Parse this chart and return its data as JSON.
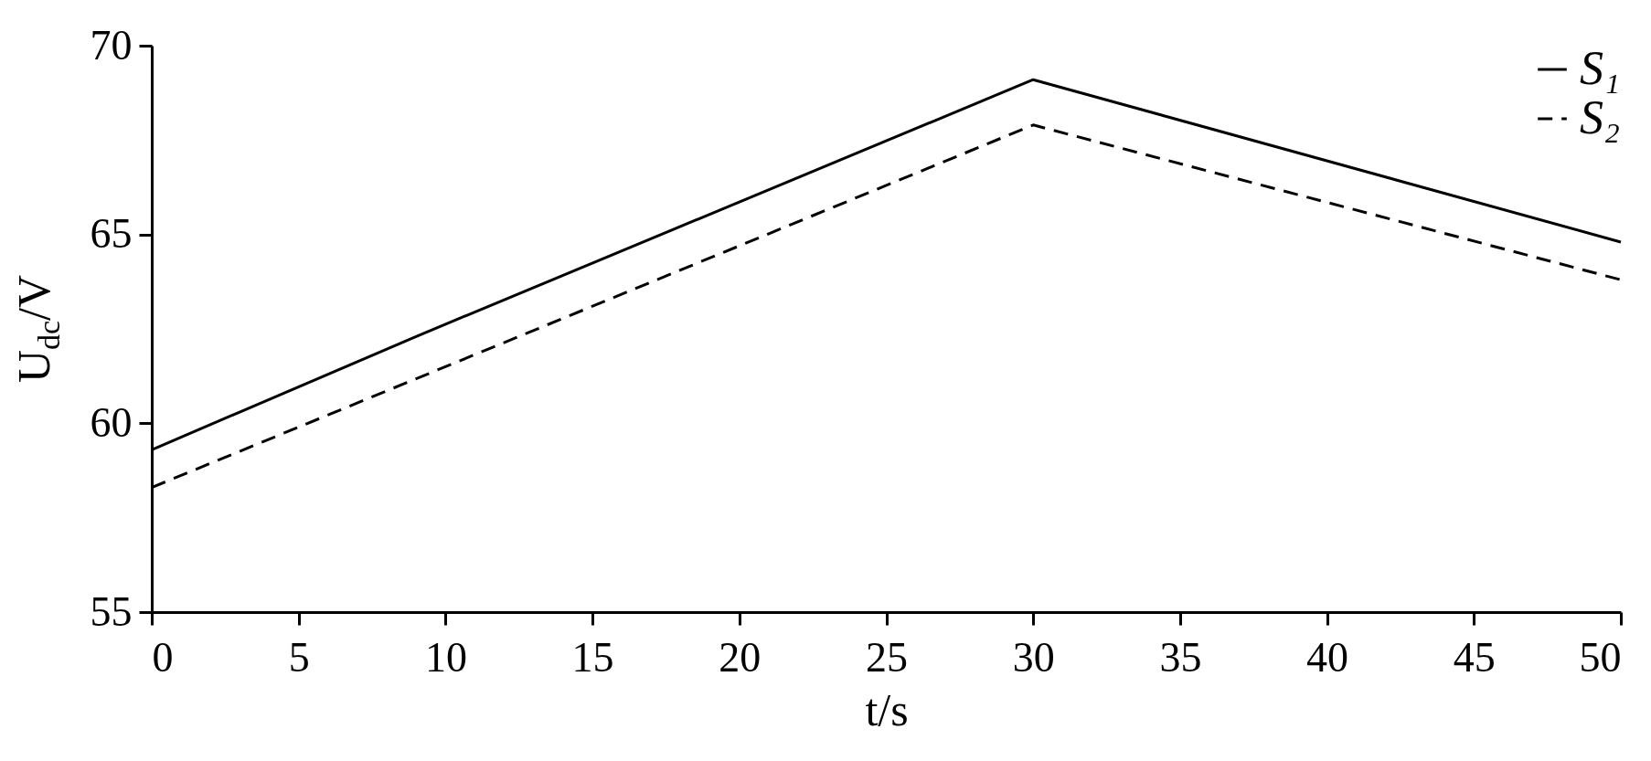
{
  "chart_data": {
    "type": "line",
    "xlabel": "t/s",
    "ylabel": "U$_{dc}$/V",
    "xlim": [
      0,
      50
    ],
    "xticks": [
      0,
      5,
      10,
      15,
      20,
      25,
      30,
      35,
      40,
      45,
      50
    ],
    "ylim": [
      55,
      70
    ],
    "yticks": [
      55,
      60,
      65,
      70
    ],
    "grid": false,
    "legend": "top right",
    "series": [
      {
        "name": "S₁",
        "color": "#000000",
        "line_style": "solid",
        "x": [
          0,
          9,
          30,
          50
        ],
        "values": [
          59.3,
          62.3,
          69.1,
          64.8
        ]
      },
      {
        "name": "S₂",
        "color": "#000000",
        "line_style": "dashed",
        "x": [
          0,
          30,
          50
        ],
        "values": [
          58.3,
          67.9,
          63.8
        ]
      }
    ]
  }
}
